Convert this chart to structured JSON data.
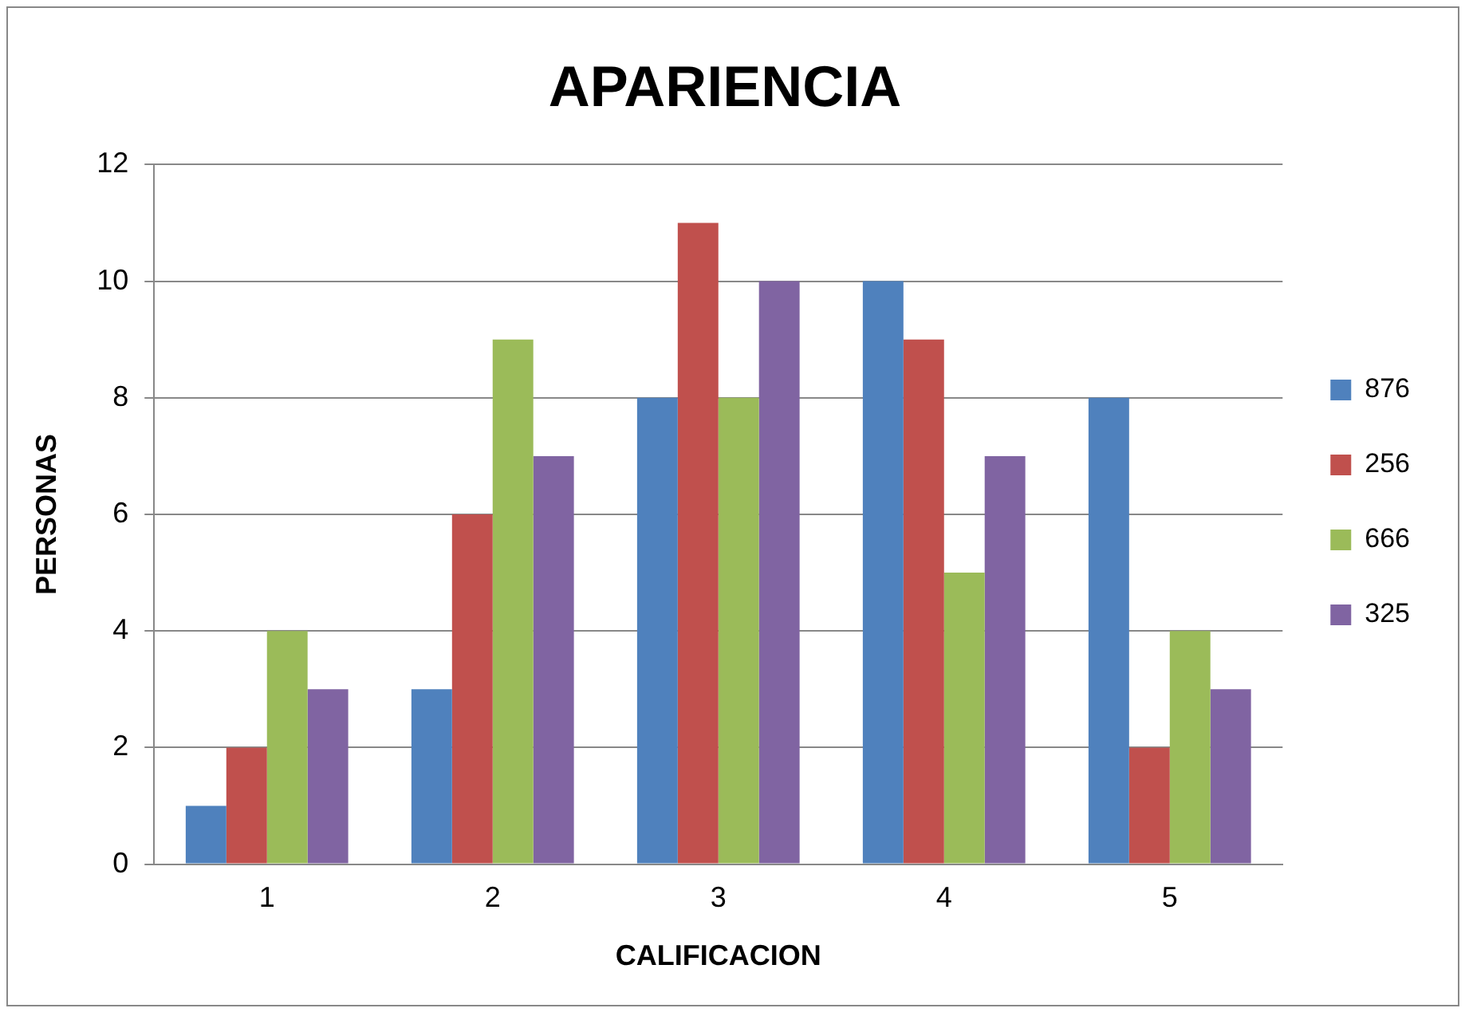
{
  "chart_data": {
    "type": "bar",
    "title": "APARIENCIA",
    "xlabel": "CALIFICACION",
    "ylabel": "PERSONAS",
    "categories": [
      "1",
      "2",
      "3",
      "4",
      "5"
    ],
    "series": [
      {
        "name": "876",
        "color": "#4f81bd",
        "values": [
          1,
          3,
          8,
          10,
          8
        ]
      },
      {
        "name": "256",
        "color": "#c0504d",
        "values": [
          2,
          6,
          11,
          9,
          2
        ]
      },
      {
        "name": "666",
        "color": "#9bbb59",
        "values": [
          4,
          9,
          8,
          5,
          4
        ]
      },
      {
        "name": "325",
        "color": "#8064a2",
        "values": [
          3,
          7,
          10,
          7,
          3
        ]
      }
    ],
    "ylim": [
      0,
      12
    ],
    "yticks": [
      0,
      2,
      4,
      6,
      8,
      10,
      12
    ],
    "grid": "y",
    "legend": "right"
  }
}
